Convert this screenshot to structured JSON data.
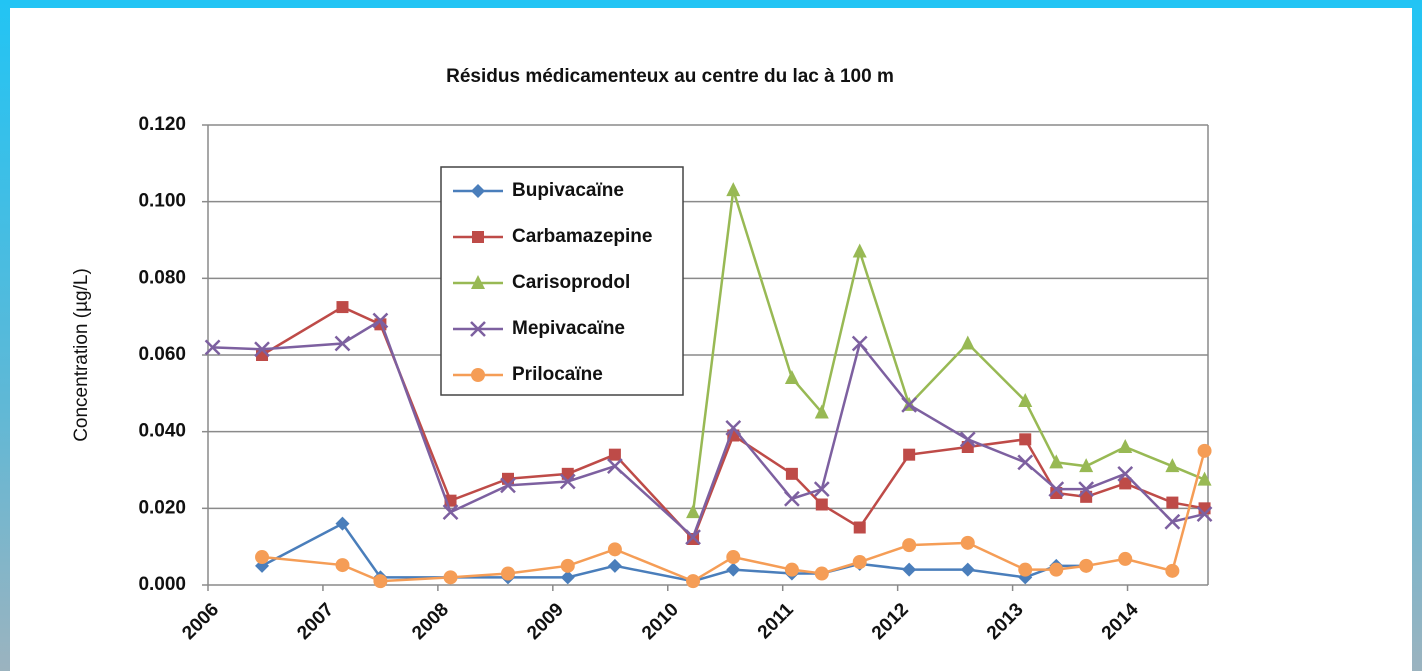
{
  "chart_data": {
    "type": "line",
    "title": "Résidus médicamenteux au centre du lac à 100 m",
    "y_label": "Concentration (µg/L)",
    "x": [
      2006.04,
      2006.47,
      2007.17,
      2007.5,
      2008.11,
      2008.61,
      2009.13,
      2009.54,
      2010.22,
      2010.57,
      2011.08,
      2011.34,
      2011.67,
      2012.1,
      2012.61,
      2013.11,
      2013.38,
      2013.64,
      2013.98,
      2014.39,
      2014.67
    ],
    "xlim": [
      2006,
      2014.7
    ],
    "xticks": [
      2006,
      2007,
      2008,
      2009,
      2010,
      2011,
      2012,
      2013,
      2014
    ],
    "ylim": [
      0,
      0.12
    ],
    "yticks": [
      {
        "value": 0,
        "label": "0.000"
      },
      {
        "value": 0.02,
        "label": "0.020"
      },
      {
        "value": 0.04,
        "label": "0.040"
      },
      {
        "value": 0.06,
        "label": "0.060"
      },
      {
        "value": 0.08,
        "label": "0.080"
      },
      {
        "value": 0.1,
        "label": "0.100"
      },
      {
        "value": 0.12,
        "label": "0.120"
      }
    ],
    "grid": true,
    "series": [
      {
        "name": "Bupivacaïne",
        "color": "#4a7ebb",
        "marker": "diamond",
        "values": [
          null,
          0.005,
          0.016,
          0.002,
          0.002,
          0.002,
          0.002,
          0.005,
          0.001,
          0.004,
          0.003,
          0.003,
          0.0055,
          0.004,
          0.004,
          0.002,
          0.005,
          0.005,
          null,
          null,
          null
        ]
      },
      {
        "name": "Carbamazepine",
        "color": "#be4b48",
        "marker": "square",
        "values": [
          null,
          0.06,
          0.0725,
          0.068,
          0.022,
          0.0277,
          0.029,
          0.034,
          0.012,
          0.039,
          0.029,
          0.021,
          0.015,
          0.034,
          0.036,
          0.038,
          0.024,
          0.023,
          0.0265,
          0.0215,
          0.02
        ]
      },
      {
        "name": "Carisoprodol",
        "color": "#98b954",
        "marker": "triangle",
        "values": [
          null,
          null,
          null,
          null,
          null,
          null,
          null,
          null,
          0.019,
          0.103,
          0.054,
          0.045,
          0.087,
          0.047,
          0.063,
          0.048,
          0.032,
          0.031,
          0.036,
          0.031,
          0.0275
        ]
      },
      {
        "name": "Mepivacaïne",
        "color": "#7d60a0",
        "marker": "x",
        "values": [
          0.062,
          0.0615,
          0.063,
          0.069,
          0.019,
          0.026,
          0.027,
          0.031,
          0.0125,
          0.041,
          0.0225,
          0.025,
          0.063,
          0.047,
          0.038,
          0.032,
          0.025,
          0.025,
          0.029,
          0.0165,
          0.0185
        ]
      },
      {
        "name": "Prilocaïne",
        "color": "#f59d56",
        "marker": "circle",
        "values": [
          null,
          0.0073,
          0.0052,
          0.001,
          0.002,
          0.003,
          0.005,
          0.0093,
          0.001,
          0.0073,
          0.004,
          0.003,
          0.006,
          0.0104,
          0.011,
          0.004,
          0.004,
          0.005,
          0.0068,
          0.0037,
          0.035
        ]
      }
    ]
  }
}
